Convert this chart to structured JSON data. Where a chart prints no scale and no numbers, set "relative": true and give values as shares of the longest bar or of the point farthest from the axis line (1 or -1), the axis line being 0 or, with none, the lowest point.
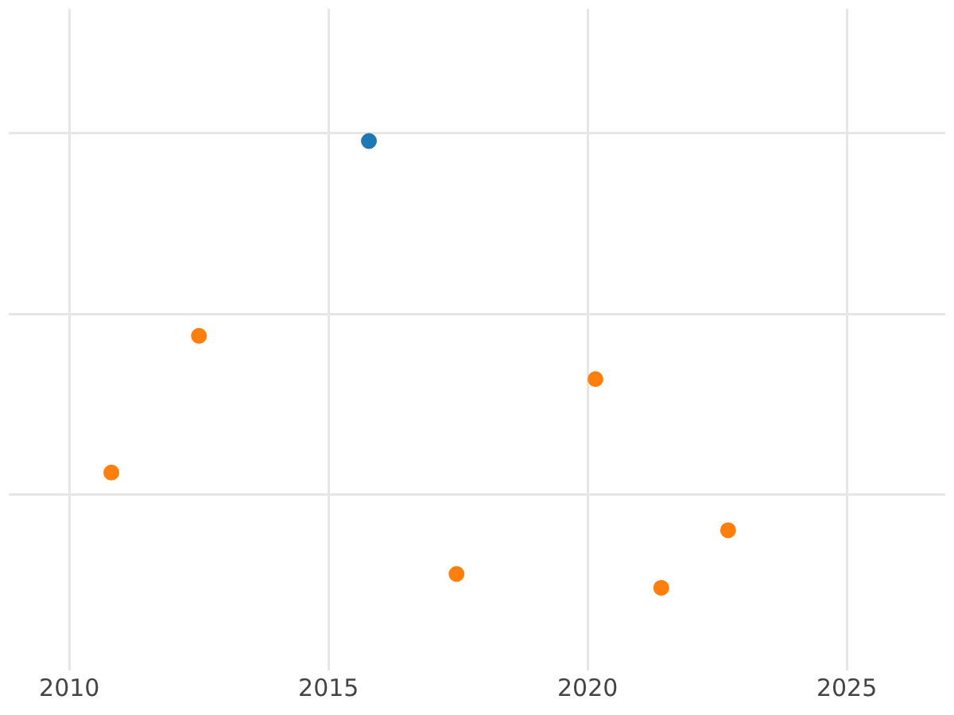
{
  "chart_data": {
    "type": "scatter",
    "relative": true,
    "xlim": [
      2008.83,
      2026.9
    ],
    "xticks": [
      2010,
      2015,
      2020,
      2025
    ],
    "series": [
      {
        "color": "#1f77b4",
        "x": [
          2015.78
        ],
        "values": [
          1
        ]
      },
      {
        "color": "#ff7f0e",
        "x": [
          2010.81,
          2012.5,
          2017.47,
          2020.15,
          2021.42,
          2022.71
        ],
        "values": [
          0.258,
          0.564,
          0.031,
          0.467,
          0,
          0.129
        ]
      }
    ],
    "grid": true,
    "legend": false,
    "marker": "circle",
    "tick_labels": "x"
  }
}
